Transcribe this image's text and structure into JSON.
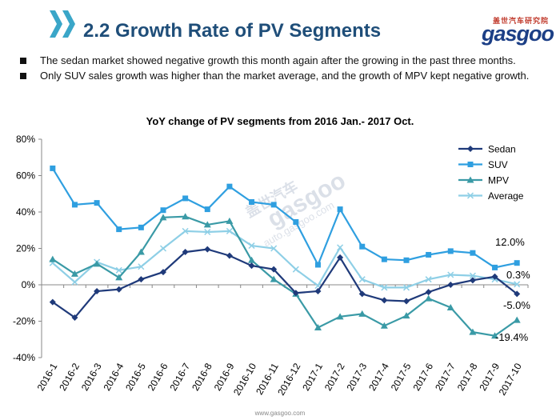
{
  "header": {
    "title": "2.2 Growth Rate of PV Segments",
    "logo_cn": "盖世汽车研究院",
    "logo_text": "gasgoo",
    "colors": {
      "title": "#1f4e79",
      "arrow": "#3aa6c8"
    }
  },
  "bullets": [
    "The sedan market showed negative growth this month again after the growing in the past three months.",
    "Only SUV sales growth was higher than the market average, and the growth of MPV kept negative growth."
  ],
  "watermark": {
    "cn": "盖世汽车",
    "text": "gasgoo",
    "url": "auto.gasgoo.com"
  },
  "footer": "www.gasgoo.com",
  "chart_data": {
    "type": "line",
    "title": "YoY change of PV segments from 2016 Jan.- 2017 Oct.",
    "xlabel": "",
    "ylabel": "",
    "ylim": [
      -40,
      80
    ],
    "yticks": [
      -40,
      -20,
      0,
      20,
      40,
      60,
      80
    ],
    "ytick_labels": [
      "-40%",
      "-20%",
      "0%",
      "20%",
      "40%",
      "60%",
      "80%"
    ],
    "categories": [
      "2016-1",
      "2016-2",
      "2016-3",
      "2016-4",
      "2016-5",
      "2016-6",
      "2016-7",
      "2016-8",
      "2016-9",
      "2016-10",
      "2016-11",
      "2016-12",
      "2017-1",
      "2017-2",
      "2017-3",
      "2017-4",
      "2017-5",
      "2017-6",
      "2017-7",
      "2017-8",
      "2017-9",
      "2017-10"
    ],
    "legend_position": "top-right",
    "series": [
      {
        "name": "Sedan",
        "color": "#1f3a7a",
        "marker": "diamond",
        "values": [
          -9.5,
          -18,
          -3.5,
          -2.5,
          3,
          7,
          18,
          19.5,
          16,
          10.5,
          8.5,
          -4.5,
          -3.5,
          15,
          -5,
          -8.5,
          -9,
          -4,
          0,
          2.5,
          4.5,
          -5.0
        ]
      },
      {
        "name": "SUV",
        "color": "#2f9fe0",
        "marker": "square",
        "values": [
          64,
          44,
          45,
          30.5,
          31.5,
          41,
          47.5,
          41.5,
          54,
          45.5,
          44,
          34.5,
          11,
          41.5,
          21,
          14,
          13.5,
          16.5,
          18.5,
          17.5,
          9.5,
          12.0
        ]
      },
      {
        "name": "MPV",
        "color": "#3a9aa6",
        "marker": "triangle",
        "values": [
          14,
          6,
          11.5,
          4,
          18,
          37,
          37.5,
          33,
          35,
          13.5,
          3,
          -5,
          -23.5,
          -17.5,
          -16,
          -22.5,
          -17,
          -7.5,
          -12.5,
          -26,
          -28,
          -19.4
        ]
      },
      {
        "name": "Average",
        "color": "#8ecfe6",
        "marker": "x",
        "values": [
          12,
          1.5,
          12.5,
          8,
          10,
          20,
          29.5,
          29,
          29.5,
          21.5,
          20,
          8.5,
          -0.5,
          20.5,
          3,
          -1.5,
          -1.5,
          3,
          5.5,
          5,
          3,
          0.3
        ]
      }
    ],
    "annotations": [
      "12.0%",
      "0.3%",
      "-5.0%",
      "-19.4%"
    ]
  }
}
